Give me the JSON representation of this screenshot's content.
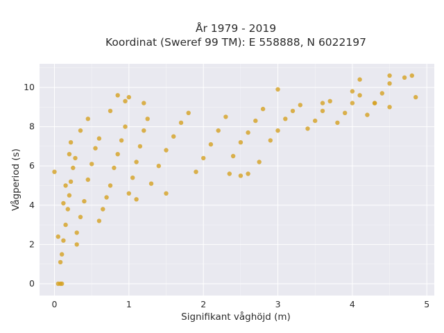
{
  "chart_data": {
    "type": "scatter",
    "title_line1": "År 1979 - 2019",
    "title_line2": "Koordinat (Sweref 99 TM): E 558888, N 6022197",
    "xlabel": "Signifikant våghöjd (m)",
    "ylabel": "Vågperiod (s)",
    "xlim": [
      -0.2,
      5.1
    ],
    "ylim": [
      -0.6,
      11.2
    ],
    "xticks": [
      0,
      1,
      2,
      3,
      4,
      5
    ],
    "yticks": [
      0,
      2,
      4,
      6,
      8,
      10
    ],
    "grid": true,
    "marker_color": "#d4a020",
    "background_color": "#e9e9f0",
    "series": [
      {
        "points": [
          [
            0.05,
            2.4
          ],
          [
            0.08,
            1.1
          ],
          [
            0.1,
            1.5
          ],
          [
            0.12,
            2.2
          ],
          [
            0.15,
            3.0
          ],
          [
            0.18,
            3.8
          ],
          [
            0.2,
            4.5
          ],
          [
            0.22,
            5.2
          ],
          [
            0.25,
            5.9
          ],
          [
            0.28,
            6.4
          ],
          [
            0.3,
            2.6
          ],
          [
            0.35,
            3.4
          ],
          [
            0.4,
            4.2
          ],
          [
            0.45,
            5.3
          ],
          [
            0.5,
            6.1
          ],
          [
            0.55,
            6.9
          ],
          [
            0.6,
            7.4
          ],
          [
            0.65,
            3.8
          ],
          [
            0.7,
            4.4
          ],
          [
            0.75,
            5.0
          ],
          [
            0.8,
            5.9
          ],
          [
            0.85,
            6.6
          ],
          [
            0.9,
            7.3
          ],
          [
            0.95,
            8.0
          ],
          [
            1.0,
            4.6
          ],
          [
            1.05,
            5.4
          ],
          [
            1.1,
            6.2
          ],
          [
            1.15,
            7.0
          ],
          [
            1.2,
            7.8
          ],
          [
            1.25,
            8.4
          ],
          [
            1.3,
            5.1
          ],
          [
            1.4,
            6.0
          ],
          [
            1.5,
            6.8
          ],
          [
            1.6,
            7.5
          ],
          [
            1.7,
            8.2
          ],
          [
            1.8,
            8.7
          ],
          [
            1.9,
            5.7
          ],
          [
            2.0,
            6.4
          ],
          [
            2.1,
            7.1
          ],
          [
            2.2,
            7.8
          ],
          [
            2.3,
            8.5
          ],
          [
            2.4,
            6.5
          ],
          [
            2.5,
            7.2
          ],
          [
            2.6,
            7.7
          ],
          [
            2.7,
            8.3
          ],
          [
            2.8,
            8.9
          ],
          [
            2.9,
            7.3
          ],
          [
            3.0,
            7.8
          ],
          [
            3.1,
            8.4
          ],
          [
            3.2,
            8.8
          ],
          [
            3.3,
            9.1
          ],
          [
            3.4,
            7.9
          ],
          [
            3.5,
            8.3
          ],
          [
            3.6,
            8.8
          ],
          [
            3.7,
            9.3
          ],
          [
            3.8,
            8.2
          ],
          [
            3.9,
            8.7
          ],
          [
            4.0,
            9.2
          ],
          [
            4.1,
            9.6
          ],
          [
            4.2,
            8.6
          ],
          [
            4.3,
            9.2
          ],
          [
            4.4,
            9.7
          ],
          [
            4.5,
            9.0
          ],
          [
            4.5,
            10.2
          ],
          [
            4.5,
            10.6
          ],
          [
            4.7,
            10.5
          ],
          [
            4.8,
            10.6
          ],
          [
            4.85,
            9.5
          ],
          [
            4.1,
            10.4
          ],
          [
            4.0,
            9.8
          ],
          [
            4.3,
            9.2
          ],
          [
            3.6,
            9.2
          ],
          [
            3.0,
            9.9
          ],
          [
            2.75,
            6.2
          ],
          [
            2.6,
            5.6
          ],
          [
            2.5,
            5.5
          ],
          [
            2.35,
            5.6
          ],
          [
            1.5,
            4.6
          ],
          [
            1.1,
            4.3
          ],
          [
            0.6,
            3.2
          ],
          [
            0.3,
            2.0
          ],
          [
            0.05,
            0.0
          ],
          [
            0.08,
            0.0
          ],
          [
            0.1,
            0.0
          ],
          [
            0.0,
            5.7
          ],
          [
            0.22,
            7.2
          ],
          [
            0.35,
            7.8
          ],
          [
            0.45,
            8.4
          ],
          [
            0.75,
            8.8
          ],
          [
            0.95,
            9.3
          ],
          [
            0.85,
            9.6
          ],
          [
            1.0,
            9.5
          ],
          [
            1.2,
            9.2
          ],
          [
            0.15,
            5.0
          ],
          [
            0.12,
            4.1
          ],
          [
            0.2,
            6.6
          ]
        ]
      }
    ]
  }
}
